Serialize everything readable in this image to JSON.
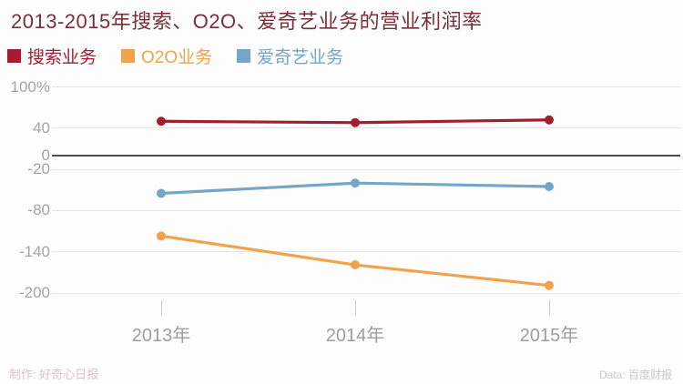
{
  "title": "2013-2015年搜索、O2O、爱奇艺业务的营业利润率",
  "colors": {
    "title": "#7a2f36",
    "search": "#a31c30",
    "o2o": "#f2a24b",
    "iqiyi": "#73a6c9",
    "gridline": "#e3e3e3",
    "zero_line": "#4d4d4d",
    "axis_label": "#a3a3a3",
    "x_label": "#9e9e9e",
    "tick": "#c9c9c9",
    "credit": "#d9c3c6",
    "source": "#c8c8c8"
  },
  "legend": {
    "items": [
      {
        "key": "search",
        "label": "搜索业务",
        "color": "#a31c30"
      },
      {
        "key": "o2o",
        "label": "O2O业务",
        "color": "#f2a24b"
      },
      {
        "key": "iqiyi",
        "label": "爱奇艺业务",
        "color": "#73a6c9"
      }
    ]
  },
  "chart_data": {
    "type": "line",
    "title": "2013-2015年搜索、O2O、爱奇艺业务的营业利润率",
    "categories": [
      "2013年",
      "2014年",
      "2015年"
    ],
    "series": [
      {
        "name": "搜索业务",
        "key": "search",
        "color": "#a31c30",
        "values": [
          50,
          48,
          52
        ]
      },
      {
        "name": "O2O业务",
        "key": "o2o",
        "color": "#f2a24b",
        "values": [
          -117,
          -159,
          -189
        ]
      },
      {
        "name": "爱奇艺业务",
        "key": "iqiyi",
        "color": "#73a6c9",
        "values": [
          -55,
          -40,
          -45
        ]
      }
    ],
    "xlabel": "",
    "ylabel": "",
    "ylim": [
      -200,
      100
    ],
    "y_ticks": [
      {
        "label": "100%",
        "value": 100
      },
      {
        "label": "40",
        "value": 40
      },
      {
        "label": "0",
        "value": 0
      },
      {
        "label": "-20",
        "value": -20
      },
      {
        "label": "-80",
        "value": -80
      },
      {
        "label": "-140",
        "value": -140
      },
      {
        "label": "-200",
        "value": -200
      }
    ],
    "grid": true,
    "legend_position": "top"
  },
  "footer": {
    "credit": "制作: 好奇心日报",
    "source": "Data: 百度财报"
  }
}
